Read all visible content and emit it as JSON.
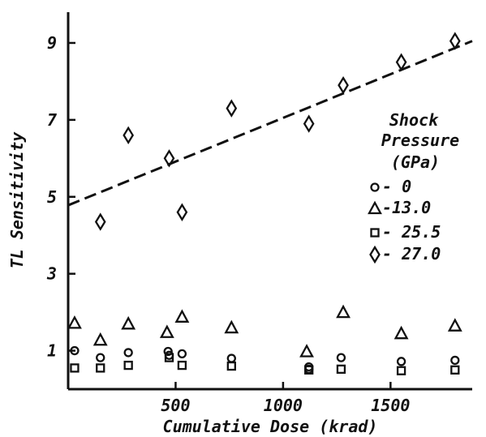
{
  "chart_data": {
    "type": "scatter",
    "xlabel": "Cumulative Dose (krad)",
    "ylabel": "TL Sensitivity",
    "xlim": [
      0,
      1880
    ],
    "ylim": [
      0,
      9.8
    ],
    "x_ticks": [
      500,
      1000,
      1500
    ],
    "y_ticks": [
      1,
      3,
      5,
      7,
      9
    ],
    "x_tick_labels": [
      "500",
      "1000",
      "1500"
    ],
    "y_tick_labels": [
      "1",
      "3",
      "5",
      "7",
      "9"
    ],
    "grid": false,
    "legend": {
      "placement": "right",
      "title_lines": [
        "Shock",
        "Pressure",
        "(GPa)"
      ],
      "entries": [
        {
          "marker": "circle",
          "label": "- 0"
        },
        {
          "marker": "triangle",
          "label": "-13.0"
        },
        {
          "marker": "square",
          "label": "- 25.5"
        },
        {
          "marker": "diamond",
          "label": "- 27.0"
        }
      ]
    },
    "series": [
      {
        "marker": "circle",
        "points": [
          [
            30,
            1.0
          ],
          [
            150,
            0.82
          ],
          [
            280,
            0.95
          ],
          [
            465,
            0.98
          ],
          [
            470,
            0.88
          ],
          [
            530,
            0.92
          ],
          [
            760,
            0.8
          ],
          [
            1120,
            0.58
          ],
          [
            1120,
            0.52
          ],
          [
            1270,
            0.82
          ],
          [
            1550,
            0.72
          ],
          [
            1800,
            0.75
          ]
        ]
      },
      {
        "marker": "triangle",
        "points": [
          [
            30,
            1.72
          ],
          [
            150,
            1.28
          ],
          [
            280,
            1.7
          ],
          [
            460,
            1.48
          ],
          [
            530,
            1.88
          ],
          [
            760,
            1.6
          ],
          [
            1110,
            0.98
          ],
          [
            1280,
            2.0
          ],
          [
            1550,
            1.45
          ],
          [
            1800,
            1.65
          ]
        ]
      },
      {
        "marker": "square",
        "points": [
          [
            30,
            0.55
          ],
          [
            150,
            0.55
          ],
          [
            280,
            0.62
          ],
          [
            470,
            0.82
          ],
          [
            530,
            0.62
          ],
          [
            760,
            0.6
          ],
          [
            1120,
            0.5
          ],
          [
            1270,
            0.52
          ],
          [
            1550,
            0.48
          ],
          [
            1800,
            0.5
          ]
        ]
      },
      {
        "marker": "diamond",
        "points": [
          [
            150,
            4.35
          ],
          [
            280,
            6.6
          ],
          [
            470,
            6.0
          ],
          [
            530,
            4.6
          ],
          [
            760,
            7.3
          ],
          [
            1120,
            6.9
          ],
          [
            1280,
            7.9
          ],
          [
            1550,
            8.5
          ],
          [
            1800,
            9.05
          ]
        ]
      }
    ],
    "trendline": {
      "style": "dashed",
      "series": "- 27.0",
      "points": [
        [
          0,
          4.78
        ],
        [
          1880,
          9.05
        ]
      ]
    }
  }
}
